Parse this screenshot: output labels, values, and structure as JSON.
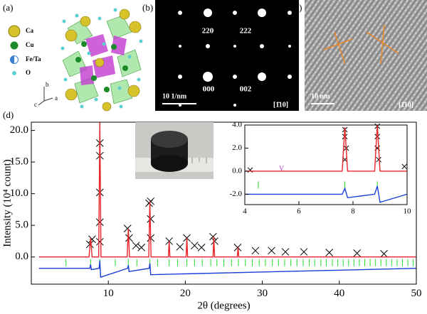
{
  "panels": {
    "a": {
      "label": "(a)",
      "legend": [
        "Ca",
        "Cu",
        "Fe/Ta",
        "O"
      ],
      "axes": [
        "b",
        "c",
        "a"
      ]
    },
    "b": {
      "label": "(b)",
      "spots": [
        "220",
        "222",
        "000",
        "002"
      ],
      "scale_bar": "10 1/nm",
      "zone_axis": "[1̄10]"
    },
    "c": {
      "label": "(c)",
      "scale_bar": "10 nm",
      "zone_axis": "[1̄10]"
    },
    "d": {
      "label": "(d)"
    }
  },
  "chart_data": [
    {
      "type": "rietveld",
      "xlabel": "2θ (degrees)",
      "ylabel": "Intensity (10⁴ count)",
      "xlim": [
        0,
        50
      ],
      "ylim": [
        -4.3,
        21.3
      ],
      "xticks": [
        10,
        20,
        30,
        40,
        50
      ],
      "yticks": [
        {
          "value": 0,
          "label": "0.0"
        },
        {
          "value": 5,
          "label": "5.0"
        },
        {
          "value": 10,
          "label": "10.0"
        },
        {
          "value": 15,
          "label": "15.0"
        },
        {
          "value": 20,
          "label": "20.0"
        }
      ],
      "series": [
        {
          "style": "cross",
          "color": "#000000",
          "x": [
            7.6,
            7.9,
            8.9,
            8.9,
            8.9,
            8.9,
            8.9,
            12.5,
            12.7,
            13.6,
            14.3,
            15.3,
            15.5,
            15.5,
            15.5,
            17.9,
            19.3,
            20.2,
            21.2,
            22.1,
            23.6,
            23.8,
            26.8,
            29.1,
            31.2,
            33.0,
            35.4,
            38.7,
            42.3,
            45.8
          ],
          "values": [
            2.0,
            2.8,
            18.0,
            16.0,
            10.2,
            5.5,
            2.4,
            4.5,
            3.0,
            1.8,
            1.5,
            8.5,
            6.0,
            3.0,
            8.8,
            2.5,
            1.6,
            3.0,
            1.8,
            1.5,
            3.2,
            2.5,
            1.5,
            1.0,
            1.0,
            0.8,
            0.8,
            0.7,
            0.6,
            0.5
          ]
        },
        {
          "style": "line",
          "color": "#e8242a",
          "x": [
            1,
            7.5,
            7.7,
            7.9,
            8.75,
            8.9,
            9.05,
            12.45,
            12.6,
            12.75,
            15.25,
            15.4,
            15.55,
            17.8,
            17.9,
            18.0,
            20.1,
            20.2,
            20.3,
            23.6,
            23.7,
            23.8,
            26.75,
            26.85,
            26.95,
            50
          ],
          "values": [
            0,
            0,
            3.0,
            0,
            0,
            21.3,
            0,
            0,
            4.5,
            0,
            0,
            8.8,
            0,
            0,
            2.5,
            0,
            0,
            3.0,
            0,
            0,
            3.2,
            0,
            0,
            1.5,
            0,
            0
          ]
        },
        {
          "style": "tick",
          "color": "#22dd22",
          "x": [
            4.5,
            7.7,
            8.9,
            10.9,
            12.6,
            13.7,
            15.4,
            16.4,
            17.9,
            19.0,
            20.2,
            21.2,
            22.2,
            23.3,
            24.1,
            25.0,
            26.0,
            26.9,
            27.8,
            28.7,
            29.6,
            30.4,
            31.3,
            32.1,
            32.9,
            33.7,
            34.5,
            35.3,
            36.1,
            36.8,
            37.6,
            38.3,
            39.1,
            39.8,
            40.5,
            41.2,
            41.9,
            42.6,
            43.3,
            44.0,
            44.7,
            45.4,
            46.1,
            46.8,
            47.5,
            48.2,
            48.9,
            49.6
          ],
          "values": [
            -0.9,
            -0.9,
            -0.9,
            -0.9,
            -0.9,
            -0.9,
            -0.9,
            -0.9,
            -0.9,
            -0.9,
            -0.9,
            -0.9,
            -0.9,
            -0.9,
            -0.9,
            -0.9,
            -0.9,
            -0.9,
            -0.9,
            -0.9,
            -0.9,
            -0.9,
            -0.9,
            -0.9,
            -0.9,
            -0.9,
            -0.9,
            -0.9,
            -0.9,
            -0.9,
            -0.9,
            -0.9,
            -0.9,
            -0.9,
            -0.9,
            -0.9,
            -0.9,
            -0.9,
            -0.9,
            -0.9,
            -0.9,
            -0.9,
            -0.9,
            -0.9,
            -0.9,
            -0.9,
            -0.9,
            -0.9
          ]
        },
        {
          "style": "line",
          "color": "#1a3fd8",
          "x": [
            1,
            7.6,
            7.7,
            7.8,
            8.8,
            8.9,
            9.0,
            12.5,
            12.6,
            12.7,
            15.3,
            15.4,
            15.5,
            50
          ],
          "values": [
            -1.8,
            -1.8,
            -1.2,
            -2.0,
            -1.8,
            -0.6,
            -3.2,
            -1.8,
            -1.3,
            -2.3,
            -1.8,
            -1.0,
            -2.8,
            -1.8
          ]
        }
      ]
    },
    {
      "type": "rietveld",
      "annotation": "V",
      "xlim": [
        4,
        10
      ],
      "ylim": [
        -2.9,
        4.0
      ],
      "xticks": [
        4,
        6,
        8,
        10
      ],
      "yticks": [
        {
          "value": -2,
          "label": "-2.0"
        },
        {
          "value": 0,
          "label": "0.0"
        },
        {
          "value": 2,
          "label": "2.0"
        },
        {
          "value": 4,
          "label": "4.0"
        }
      ],
      "series": [
        {
          "style": "cross",
          "color": "#000000",
          "x": [
            4.2,
            7.7,
            7.7,
            7.75,
            7.7,
            8.9,
            8.9,
            8.9,
            8.95,
            9.9
          ],
          "values": [
            0.1,
            3.6,
            3.0,
            2.0,
            1.0,
            3.9,
            3.0,
            2.0,
            1.0,
            0.4
          ]
        },
        {
          "style": "line",
          "color": "#e8242a",
          "x": [
            4,
            7.6,
            7.7,
            7.8,
            8.8,
            8.9,
            9.0,
            10
          ],
          "values": [
            0,
            0,
            3.8,
            0,
            0,
            4.0,
            0,
            0
          ]
        },
        {
          "style": "tick",
          "color": "#22dd22",
          "x": [
            4.5,
            7.7,
            8.9,
            10.0
          ],
          "values": [
            -1.2,
            -1.2,
            -1.2,
            -1.2
          ]
        },
        {
          "style": "line",
          "color": "#1a3fd8",
          "x": [
            4,
            7.6,
            7.7,
            7.8,
            8.8,
            8.9,
            9.0,
            10
          ],
          "values": [
            -2,
            -2,
            -1.5,
            -2.3,
            -2,
            -1.3,
            -2.7,
            -2
          ]
        }
      ]
    }
  ]
}
